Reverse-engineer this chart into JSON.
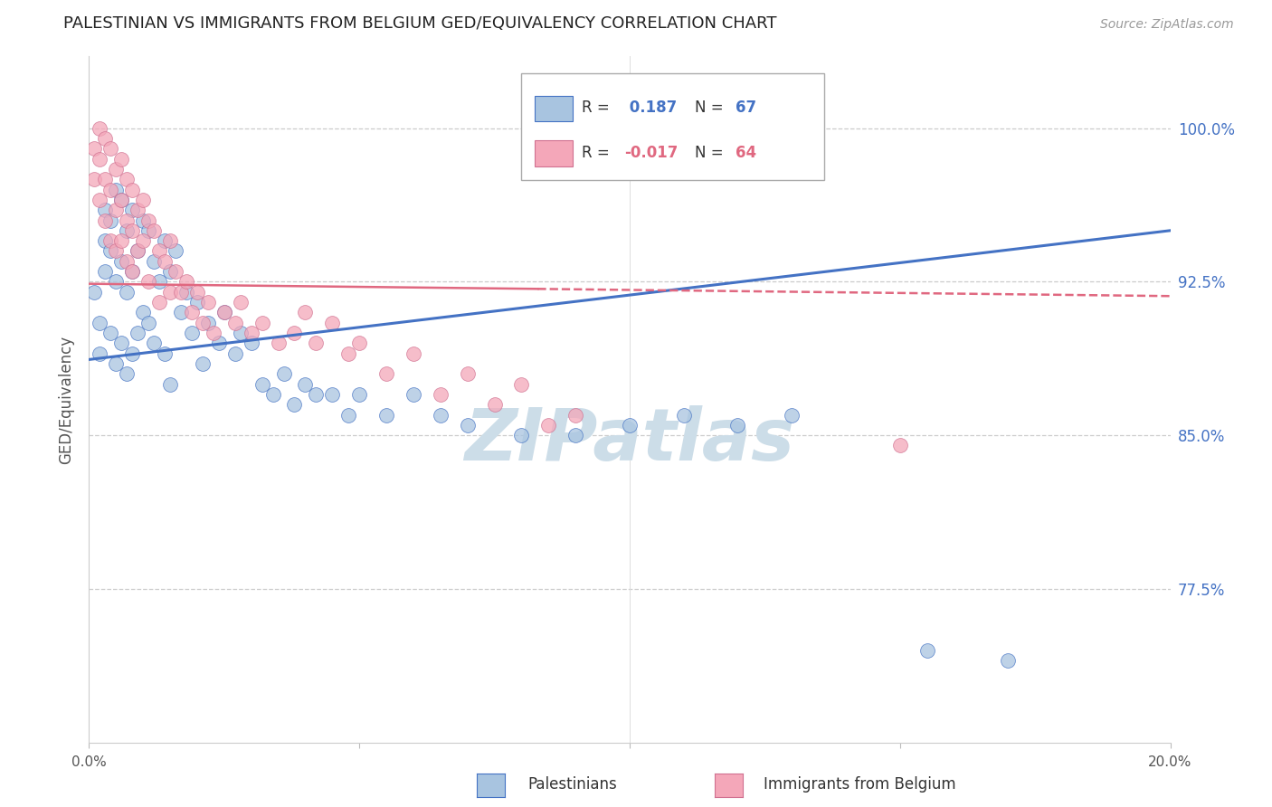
{
  "title": "PALESTINIAN VS IMMIGRANTS FROM BELGIUM GED/EQUIVALENCY CORRELATION CHART",
  "source": "Source: ZipAtlas.com",
  "ylabel": "GED/Equivalency",
  "ytick_labels": [
    "100.0%",
    "92.5%",
    "85.0%",
    "77.5%"
  ],
  "ytick_values": [
    1.0,
    0.925,
    0.85,
    0.775
  ],
  "xlim": [
    0.0,
    0.2
  ],
  "ylim": [
    0.7,
    1.035
  ],
  "r_blue": "0.187",
  "n_blue": 67,
  "r_pink": "-0.017",
  "n_pink": 64,
  "color_blue": "#a8c4e0",
  "color_pink": "#f4a7b9",
  "line_blue": "#4472c4",
  "line_pink": "#e06880",
  "watermark": "ZIPatlas",
  "watermark_color": "#ccdde8",
  "legend_label_blue": "Palestinians",
  "legend_label_pink": "Immigrants from Belgium",
  "blue_scatter_x": [
    0.001,
    0.002,
    0.002,
    0.003,
    0.003,
    0.003,
    0.004,
    0.004,
    0.004,
    0.005,
    0.005,
    0.005,
    0.006,
    0.006,
    0.006,
    0.007,
    0.007,
    0.007,
    0.008,
    0.008,
    0.008,
    0.009,
    0.009,
    0.01,
    0.01,
    0.011,
    0.011,
    0.012,
    0.012,
    0.013,
    0.014,
    0.014,
    0.015,
    0.015,
    0.016,
    0.017,
    0.018,
    0.019,
    0.02,
    0.021,
    0.022,
    0.024,
    0.025,
    0.027,
    0.028,
    0.03,
    0.032,
    0.034,
    0.036,
    0.038,
    0.04,
    0.042,
    0.045,
    0.048,
    0.05,
    0.055,
    0.06,
    0.065,
    0.07,
    0.08,
    0.09,
    0.1,
    0.11,
    0.12,
    0.13,
    0.155,
    0.17
  ],
  "blue_scatter_y": [
    0.92,
    0.905,
    0.89,
    0.96,
    0.945,
    0.93,
    0.955,
    0.94,
    0.9,
    0.97,
    0.925,
    0.885,
    0.965,
    0.935,
    0.895,
    0.95,
    0.92,
    0.88,
    0.96,
    0.93,
    0.89,
    0.94,
    0.9,
    0.955,
    0.91,
    0.95,
    0.905,
    0.935,
    0.895,
    0.925,
    0.945,
    0.89,
    0.93,
    0.875,
    0.94,
    0.91,
    0.92,
    0.9,
    0.915,
    0.885,
    0.905,
    0.895,
    0.91,
    0.89,
    0.9,
    0.895,
    0.875,
    0.87,
    0.88,
    0.865,
    0.875,
    0.87,
    0.87,
    0.86,
    0.87,
    0.86,
    0.87,
    0.86,
    0.855,
    0.85,
    0.85,
    0.855,
    0.86,
    0.855,
    0.86,
    0.745,
    0.74
  ],
  "pink_scatter_x": [
    0.001,
    0.001,
    0.002,
    0.002,
    0.002,
    0.003,
    0.003,
    0.003,
    0.004,
    0.004,
    0.004,
    0.005,
    0.005,
    0.005,
    0.006,
    0.006,
    0.006,
    0.007,
    0.007,
    0.007,
    0.008,
    0.008,
    0.008,
    0.009,
    0.009,
    0.01,
    0.01,
    0.011,
    0.011,
    0.012,
    0.013,
    0.013,
    0.014,
    0.015,
    0.015,
    0.016,
    0.017,
    0.018,
    0.019,
    0.02,
    0.021,
    0.022,
    0.023,
    0.025,
    0.027,
    0.028,
    0.03,
    0.032,
    0.035,
    0.038,
    0.04,
    0.042,
    0.045,
    0.048,
    0.05,
    0.055,
    0.06,
    0.065,
    0.07,
    0.075,
    0.08,
    0.085,
    0.09,
    0.15
  ],
  "pink_scatter_y": [
    0.99,
    0.975,
    1.0,
    0.985,
    0.965,
    0.995,
    0.975,
    0.955,
    0.99,
    0.97,
    0.945,
    0.98,
    0.96,
    0.94,
    0.985,
    0.965,
    0.945,
    0.975,
    0.955,
    0.935,
    0.97,
    0.95,
    0.93,
    0.96,
    0.94,
    0.965,
    0.945,
    0.955,
    0.925,
    0.95,
    0.94,
    0.915,
    0.935,
    0.945,
    0.92,
    0.93,
    0.92,
    0.925,
    0.91,
    0.92,
    0.905,
    0.915,
    0.9,
    0.91,
    0.905,
    0.915,
    0.9,
    0.905,
    0.895,
    0.9,
    0.91,
    0.895,
    0.905,
    0.89,
    0.895,
    0.88,
    0.89,
    0.87,
    0.88,
    0.865,
    0.875,
    0.855,
    0.86,
    0.845
  ]
}
